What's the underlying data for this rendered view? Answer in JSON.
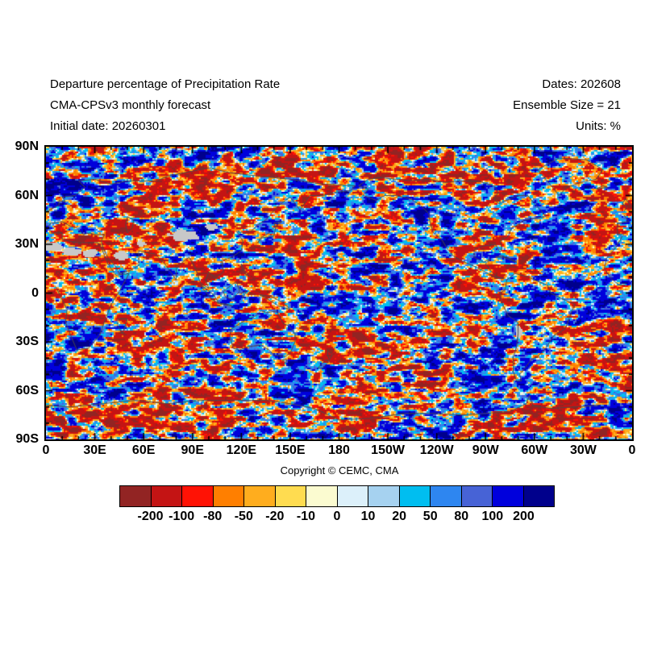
{
  "header": {
    "title_lines": [
      "Departure percentage of Precipitation Rate",
      "CMA-CPSv3 monthly forecast",
      "Initial date: 20260301"
    ],
    "meta_lines": [
      "Dates: 202608",
      "Ensemble Size = 21",
      "Units: %"
    ]
  },
  "map": {
    "lat_tick_labels": [
      "90N",
      "60N",
      "30N",
      "0",
      "30S",
      "60S",
      "90S"
    ],
    "lon_tick_labels": [
      "0",
      "30E",
      "60E",
      "90E",
      "120E",
      "150E",
      "180",
      "150W",
      "120W",
      "90W",
      "60W",
      "30W",
      "0"
    ]
  },
  "copyright": "Copyright © CEMC, CMA",
  "colorbar": {
    "boundary_labels": [
      "-200",
      "-100",
      "-80",
      "-50",
      "-20",
      "-10",
      "0",
      "10",
      "20",
      "50",
      "80",
      "100",
      "200"
    ],
    "colors": [
      "#922423",
      "#C41414",
      "#FF1205",
      "#FF7F00",
      "#FFAD1E",
      "#FFDC50",
      "#FBFBD0",
      "#DCF0FA",
      "#A6D2F0",
      "#00BEF0",
      "#2E86F0",
      "#4763D6",
      "#0000DC",
      "#00008C"
    ],
    "missing_color": "#C8C8C8",
    "coastline_color": "#4A4A4A"
  },
  "chart_data": {
    "type": "heatmap",
    "title": "Departure percentage of Precipitation Rate",
    "subtitle": "CMA-CPSv3 monthly forecast",
    "initial_date": "20260301",
    "forecast_dates": "202608",
    "ensemble_size": 21,
    "units": "%",
    "x_axis": {
      "label": "longitude",
      "range_deg": [
        0,
        360
      ],
      "tick_labels": [
        "0",
        "30E",
        "60E",
        "90E",
        "120E",
        "150E",
        "180",
        "150W",
        "120W",
        "90W",
        "60W",
        "30W",
        "0"
      ],
      "minor_tick_step_deg": 10,
      "major_tick_step_deg": 30
    },
    "y_axis": {
      "label": "latitude",
      "range_deg": [
        -90,
        90
      ],
      "tick_labels": [
        "90N",
        "60N",
        "30N",
        "0",
        "30S",
        "60S",
        "90S"
      ],
      "minor_tick_step_deg": 10,
      "major_tick_step_deg": 30
    },
    "legend": {
      "boundaries": [
        -200,
        -100,
        -80,
        -50,
        -20,
        -10,
        0,
        10,
        20,
        50,
        80,
        100,
        200
      ],
      "colors": [
        "#922423",
        "#C41414",
        "#FF1205",
        "#FF7F00",
        "#FFAD1E",
        "#FFDC50",
        "#FBFBD0",
        "#DCF0FA",
        "#A6D2F0",
        "#00BEF0",
        "#2E86F0",
        "#4763D6",
        "#0000DC",
        "#00008C"
      ],
      "position": "bottom",
      "meaning": "red/orange = negative precipitation departure (%), blue = positive departure (%), gray = undefined (arid / no climatological precipitation)"
    },
    "grid": false,
    "annotations": [
      "Copyright © CEMC, CMA"
    ],
    "field_description": "Pixelated global ensemble-mean precipitation-rate departure (%) field on 0-360E x 90S-90N grid with thin coastline overlay; large saturated red and blue anomaly patches, pale yellow/blue transition zones, gray missing-data blobs over Sahara, Arabia, Tibet and Atacama."
  }
}
